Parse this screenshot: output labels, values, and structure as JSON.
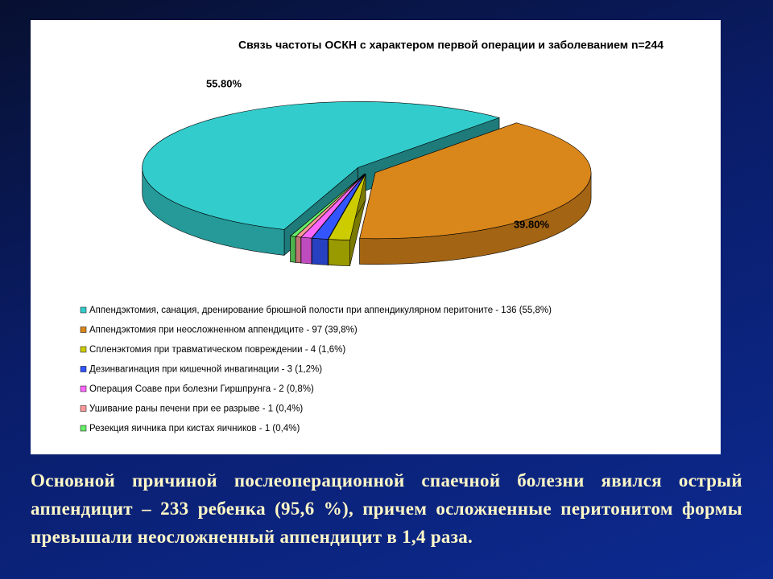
{
  "chart_data": {
    "type": "pie3d",
    "title": "Связь частоты ОСКН с характером первой операции и заболеванием n=244",
    "categories": [
      "Аппендэктомия, санация, дренирование брюшной полости при аппендикулярном перитоните - 136 (55,8%)",
      "Аппендэктомия при неосложненном аппендиците - 97 (39,8%)",
      "Спленэктомия при травматическом повреждении - 4 (1,6%)",
      "Дезинвагинация при кишечной инвагинации - 3 (1,2%)",
      "Операция Соаве при болезни Гиршпрунга - 2 (0,8%)",
      "Ушивание раны печени при ее разрыве - 1 (0,4%)",
      "Резекция яичника при кистах яичников - 1 (0,4%)"
    ],
    "values": [
      55.8,
      39.8,
      1.6,
      1.2,
      0.8,
      0.4,
      0.4
    ],
    "value_labels": [
      "55.80%",
      "39.80%",
      null,
      null,
      null,
      null,
      null
    ],
    "colors": [
      "#33cccc",
      "#d9861a",
      "#cccc00",
      "#3355ff",
      "#ff66ff",
      "#ff9999",
      "#66ee66"
    ]
  },
  "slide_text": "Основной причиной послеоперационной спаечной болезни явился острый аппендицит – 233 ребенка (95,6 %), причем осложненные перитонитом формы превышали неосложненный аппендицит в 1,4 раза."
}
